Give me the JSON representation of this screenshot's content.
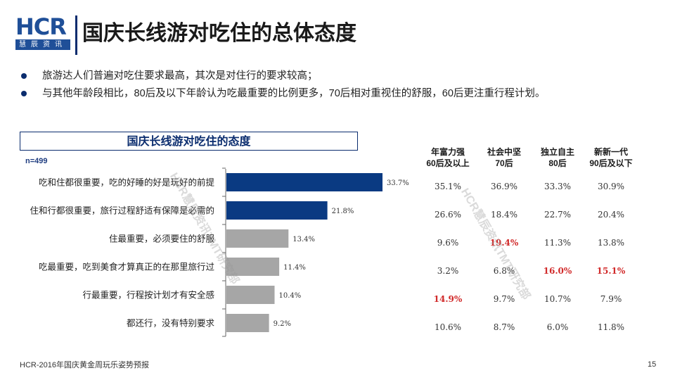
{
  "logo": {
    "brand": "HCR",
    "sub": "慧辰资讯"
  },
  "title": "国庆长线游对吃住的总体态度",
  "bullets": [
    "旅游达人们普遍对吃住要求最高，其次是对住行的要求较高；",
    "与其他年龄段相比，80后及以下年龄认为吃最重要的比例更多，70后相对重视住的舒服，60后更注重行程计划。"
  ],
  "watermarks": [
    "HCR慧辰资讯TMT研究部",
    "HCR慧辰资讯TMT研究部"
  ],
  "chart_data": {
    "type": "bar",
    "orientation": "horizontal",
    "title": "国庆长线游对吃住的态度",
    "sample": "n=499",
    "categories": [
      "吃和住都很重要，吃的好睡的好是玩好的前提",
      "住和行都很重要，旅行过程舒适有保障是必需的",
      "住最重要，必须要住的舒服",
      "吃最重要，吃到美食才算真正的在那里旅行过",
      "行最重要，行程按计划才有安全感",
      "都还行，没有特别要求"
    ],
    "values": [
      33.7,
      21.8,
      13.4,
      11.4,
      10.4,
      9.2
    ],
    "value_labels": [
      "33.7%",
      "21.8%",
      "13.4%",
      "11.4%",
      "10.4%",
      "9.2%"
    ],
    "highlight_count": 2,
    "colors": {
      "highlight": "#0a3a82",
      "normal": "#a6a6a6"
    },
    "xlim": [
      0,
      40
    ]
  },
  "table": {
    "columns": [
      {
        "line1": "年富力强",
        "line2": "60后及以上"
      },
      {
        "line1": "社会中坚",
        "line2": "70后"
      },
      {
        "line1": "独立自主",
        "line2": "80后"
      },
      {
        "line1": "新新一代",
        "line2": "90后及以下"
      }
    ],
    "rows": [
      {
        "cells": [
          "35.1%",
          "36.9%",
          "33.3%",
          "30.9%"
        ],
        "highlight": [
          false,
          false,
          false,
          false
        ]
      },
      {
        "cells": [
          "26.6%",
          "18.4%",
          "22.7%",
          "20.4%"
        ],
        "highlight": [
          false,
          false,
          false,
          false
        ]
      },
      {
        "cells": [
          "9.6%",
          "19.4%",
          "11.3%",
          "13.8%"
        ],
        "highlight": [
          false,
          true,
          false,
          false
        ]
      },
      {
        "cells": [
          "3.2%",
          "6.8%",
          "16.0%",
          "15.1%"
        ],
        "highlight": [
          false,
          false,
          true,
          true
        ]
      },
      {
        "cells": [
          "14.9%",
          "9.7%",
          "10.7%",
          "7.9%"
        ],
        "highlight": [
          true,
          false,
          false,
          false
        ]
      },
      {
        "cells": [
          "10.6%",
          "8.7%",
          "6.0%",
          "11.8%"
        ],
        "highlight": [
          false,
          false,
          false,
          false
        ]
      }
    ],
    "highlight_color": "#d12a2a"
  },
  "footer": "HCR-2016年国庆黄金周玩乐姿势预报",
  "page_number": "15"
}
